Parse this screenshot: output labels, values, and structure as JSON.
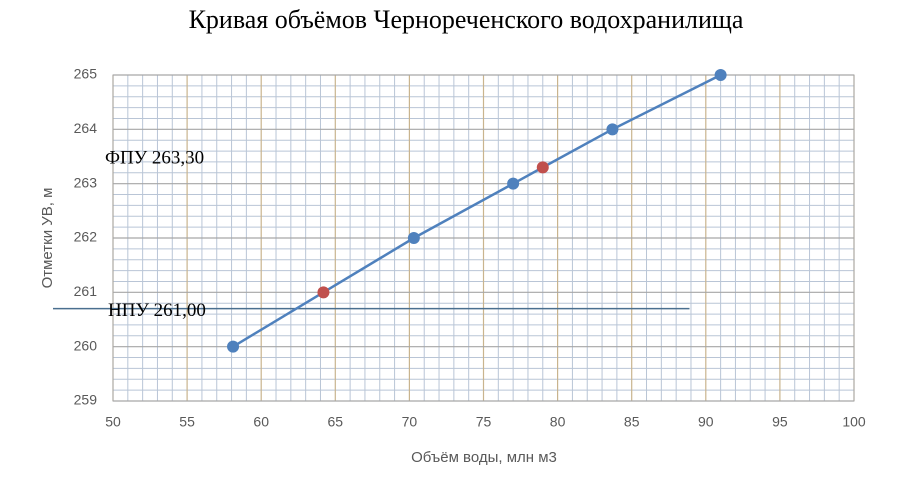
{
  "chart_data": {
    "type": "line",
    "title": "Кривая объёмов Чернореченского водохранилища",
    "xlabel": "Объём воды, млн м3",
    "ylabel": "Отметки УВ, м",
    "series": [
      {
        "color": "#4f81bd",
        "x": [
          58.1,
          64.2,
          70.3,
          77.0,
          79.0,
          83.7,
          91.0
        ],
        "values": [
          260,
          261,
          262,
          263,
          263.3,
          264,
          265
        ],
        "marker_colors": [
          "#4f81bd",
          "#c0504d",
          "#4f81bd",
          "#4f81bd",
          "#c0504d",
          "#4f81bd",
          "#4f81bd"
        ]
      }
    ],
    "annotations": [
      {
        "text": "ФПУ 263,30",
        "y": 263.3
      },
      {
        "text": "НПУ 261,00",
        "y": 260.7,
        "x_end": 88.9,
        "color": "#4a6f8f"
      }
    ],
    "xlim": [
      50,
      100
    ],
    "xticks": [
      50,
      55,
      60,
      65,
      70,
      75,
      80,
      85,
      90,
      95,
      100
    ],
    "ylim": [
      259,
      265
    ],
    "yticks": [
      259,
      260,
      261,
      262,
      263,
      264,
      265
    ],
    "grid": true
  }
}
